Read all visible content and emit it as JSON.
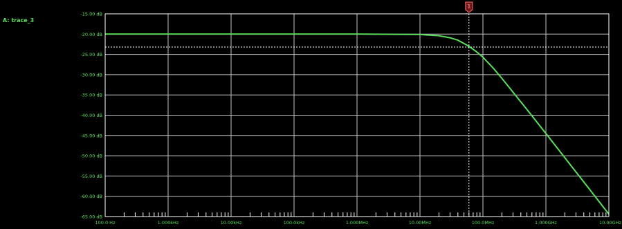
{
  "colors": {
    "background": "#000000",
    "grid": "#c8c8c8",
    "frame": "#ffffff",
    "trace": "#5be05b",
    "label_text": "#5be05b",
    "ref_line": "#ffffff",
    "marker": "#ff6a6a"
  },
  "chart_data": {
    "type": "line",
    "x_scale": "log",
    "y_unit": "dB",
    "xlim": [
      100,
      10000000000
    ],
    "ylim": [
      -65,
      -15
    ],
    "grid": true,
    "x_ticks": [
      {
        "value": 100,
        "label": "100.0 Hz"
      },
      {
        "value": 1000,
        "label": "1.000kHz"
      },
      {
        "value": 10000,
        "label": "10.00kHz"
      },
      {
        "value": 100000,
        "label": "100.0kHz"
      },
      {
        "value": 1000000,
        "label": "1.000MHz"
      },
      {
        "value": 10000000,
        "label": "10.00MHz"
      },
      {
        "value": 100000000,
        "label": "100.0MHz"
      },
      {
        "value": 1000000000,
        "label": "1.000GHz"
      },
      {
        "value": 10000000000,
        "label": "10.00GHz"
      }
    ],
    "y_ticks": [
      {
        "value": -15,
        "label": "-15.00 dB"
      },
      {
        "value": -20,
        "label": "-20.00 dB"
      },
      {
        "value": -25,
        "label": "-25.00 dB"
      },
      {
        "value": -30,
        "label": "-30.00 dB"
      },
      {
        "value": -35,
        "label": "-35.00 dB"
      },
      {
        "value": -40,
        "label": "-40.00 dB"
      },
      {
        "value": -45,
        "label": "-45.00 dB"
      },
      {
        "value": -50,
        "label": "-50.00 dB"
      },
      {
        "value": -55,
        "label": "-55.00 dB"
      },
      {
        "value": -60,
        "label": "-60.00 dB"
      },
      {
        "value": -65,
        "label": "-65.00 dB"
      }
    ],
    "series": [
      {
        "name": "A: trace_3",
        "x": [
          100,
          1000,
          10000,
          100000,
          1000000,
          10000000,
          20000000,
          30000000,
          40000000,
          60000000,
          80000000,
          100000000,
          150000000,
          200000000,
          300000000,
          500000000,
          1000000000,
          2000000000,
          3000000000,
          5000000000,
          10000000000
        ],
        "y": [
          -20,
          -20,
          -20,
          -20,
          -20,
          -20.1,
          -20.4,
          -20.9,
          -21.5,
          -23.0,
          -24.4,
          -25.7,
          -28.6,
          -30.9,
          -34.3,
          -38.6,
          -44.5,
          -50.5,
          -54.0,
          -58.4,
          -64.4
        ]
      }
    ],
    "reference_line": {
      "y": -23.2
    },
    "marker": {
      "x": 60000000,
      "label": "1"
    }
  }
}
